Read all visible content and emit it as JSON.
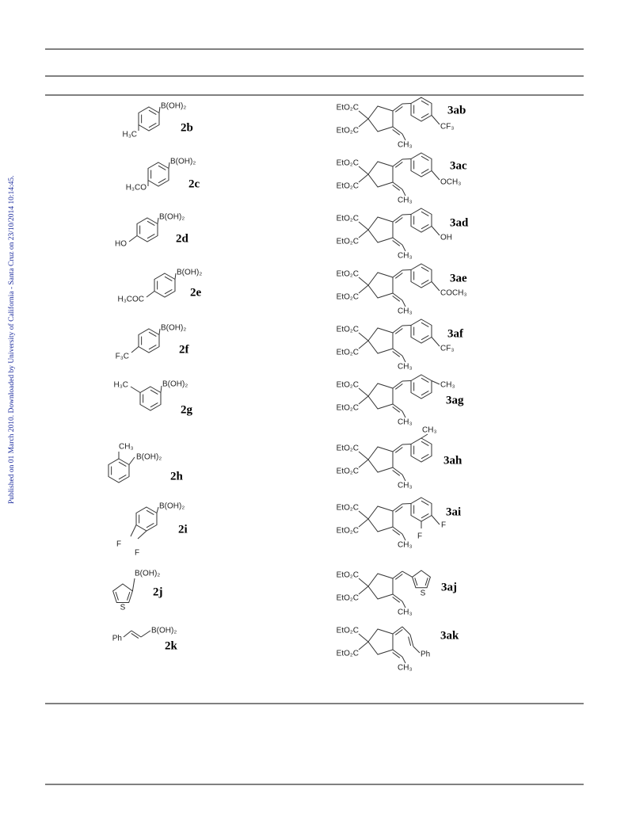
{
  "side_note": "Published on 01 March 2010. Downloaded by University of California - Santa Cruz on 23/10/2014 10:14:45.",
  "rows": [
    {
      "reagent": {
        "id": "2b",
        "labels": [
          "B(OH)₂",
          "H₃C"
        ]
      },
      "product": {
        "id": "3ab",
        "labels": [
          "EtO₂C",
          "EtO₂C",
          "CH₃",
          "CF₃"
        ]
      }
    },
    {
      "reagent": {
        "id": "2c",
        "labels": [
          "B(OH)₂",
          "H₃CO"
        ]
      },
      "product": {
        "id": "3ac",
        "labels": [
          "EtO₂C",
          "EtO₂C",
          "CH₃",
          "OCH₃"
        ]
      }
    },
    {
      "reagent": {
        "id": "2d",
        "labels": [
          "B(OH)₂",
          "HO"
        ]
      },
      "product": {
        "id": "3ad",
        "labels": [
          "EtO₂C",
          "EtO₂C",
          "CH₃",
          "OH"
        ]
      }
    },
    {
      "reagent": {
        "id": "2e",
        "labels": [
          "B(OH)₂",
          "H₃COC"
        ]
      },
      "product": {
        "id": "3ae",
        "labels": [
          "EtO₂C",
          "EtO₂C",
          "CH₃",
          "COCH₃"
        ]
      }
    },
    {
      "reagent": {
        "id": "2f",
        "labels": [
          "B(OH)₂",
          "F₃C"
        ]
      },
      "product": {
        "id": "3af",
        "labels": [
          "EtO₂C",
          "EtO₂C",
          "CH₃",
          "CF₃"
        ]
      }
    },
    {
      "reagent": {
        "id": "2g",
        "labels": [
          "H₃C",
          "B(OH)₂"
        ]
      },
      "product": {
        "id": "3ag",
        "labels": [
          "EtO₂C",
          "EtO₂C",
          "CH₃",
          "CH₃"
        ]
      }
    },
    {
      "reagent": {
        "id": "2h",
        "labels": [
          "CH₃",
          "B(OH)₂"
        ]
      },
      "product": {
        "id": "3ah",
        "labels": [
          "EtO₂C",
          "EtO₂C",
          "CH₃",
          "CH₃"
        ]
      }
    },
    {
      "reagent": {
        "id": "2i",
        "labels": [
          "B(OH)₂",
          "F",
          "F"
        ]
      },
      "product": {
        "id": "3ai",
        "labels": [
          "EtO₂C",
          "EtO₂C",
          "CH₃",
          "F",
          "F"
        ]
      }
    },
    {
      "reagent": {
        "id": "2j",
        "labels": [
          "B(OH)₂",
          "S"
        ]
      },
      "product": {
        "id": "3aj",
        "labels": [
          "EtO₂C",
          "EtO₂C",
          "CH₃",
          "S"
        ]
      }
    },
    {
      "reagent": {
        "id": "2k",
        "labels": [
          "Ph",
          "B(OH)₂"
        ]
      },
      "product": {
        "id": "3ak",
        "labels": [
          "EtO₂C",
          "EtO₂C",
          "CH₃",
          "Ph"
        ]
      }
    }
  ]
}
